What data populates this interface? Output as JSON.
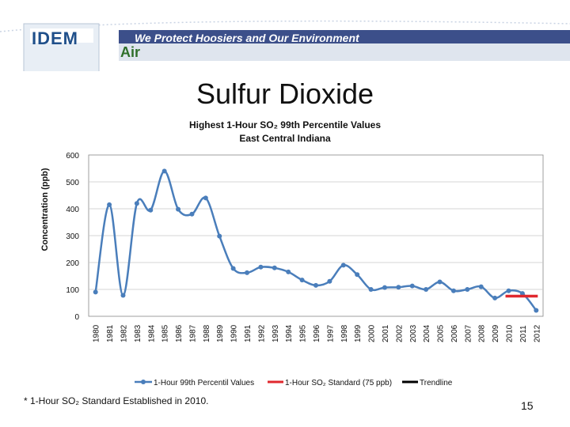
{
  "header": {
    "logo_text": "IDEM",
    "banner_text": "We Protect Hoosiers and Our Environment",
    "section_text": "Air"
  },
  "slide_title": "Sulfur Dioxide",
  "chart_title_line1": "Highest 1-Hour SO₂ 99th Percentile Values",
  "chart_title_line2": "East Central Indiana",
  "footnote": "* 1-Hour SO₂ Standard  Established in 2010.",
  "page_number": "15",
  "colors": {
    "series": "#4a7ebb",
    "standard": "#e0282e",
    "trendline": "#000000",
    "banner": "#3c4f8a"
  },
  "chart_data": {
    "type": "line",
    "ylabel": "Concentration (ppb)",
    "ylim": [
      0,
      600
    ],
    "yticks": [
      0,
      100,
      200,
      300,
      400,
      500,
      600
    ],
    "categories": [
      "1980",
      "1981",
      "1982",
      "1983",
      "1984",
      "1985",
      "1986",
      "1987",
      "1988",
      "1989",
      "1990",
      "1991",
      "1992",
      "1993",
      "1994",
      "1995",
      "1996",
      "1997",
      "1998",
      "1999",
      "2000",
      "2001",
      "2002",
      "2003",
      "2004",
      "2005",
      "2006",
      "2007",
      "2008",
      "2009",
      "2010",
      "2011",
      "2012"
    ],
    "series": [
      {
        "name": "1-Hour 99th Percentil Values",
        "values": [
          90,
          415,
          78,
          420,
          395,
          540,
          398,
          380,
          440,
          298,
          178,
          162,
          183,
          180,
          165,
          135,
          115,
          130,
          190,
          155,
          100,
          107,
          108,
          113,
          100,
          128,
          95,
          100,
          110,
          68,
          95,
          85,
          22
        ]
      }
    ],
    "standard": {
      "name": "1-Hour SO₂ Standard (75 ppb)",
      "value": 75,
      "x_from": "2010",
      "x_to": "2012"
    },
    "trendline": {
      "name": "Trendline"
    }
  }
}
